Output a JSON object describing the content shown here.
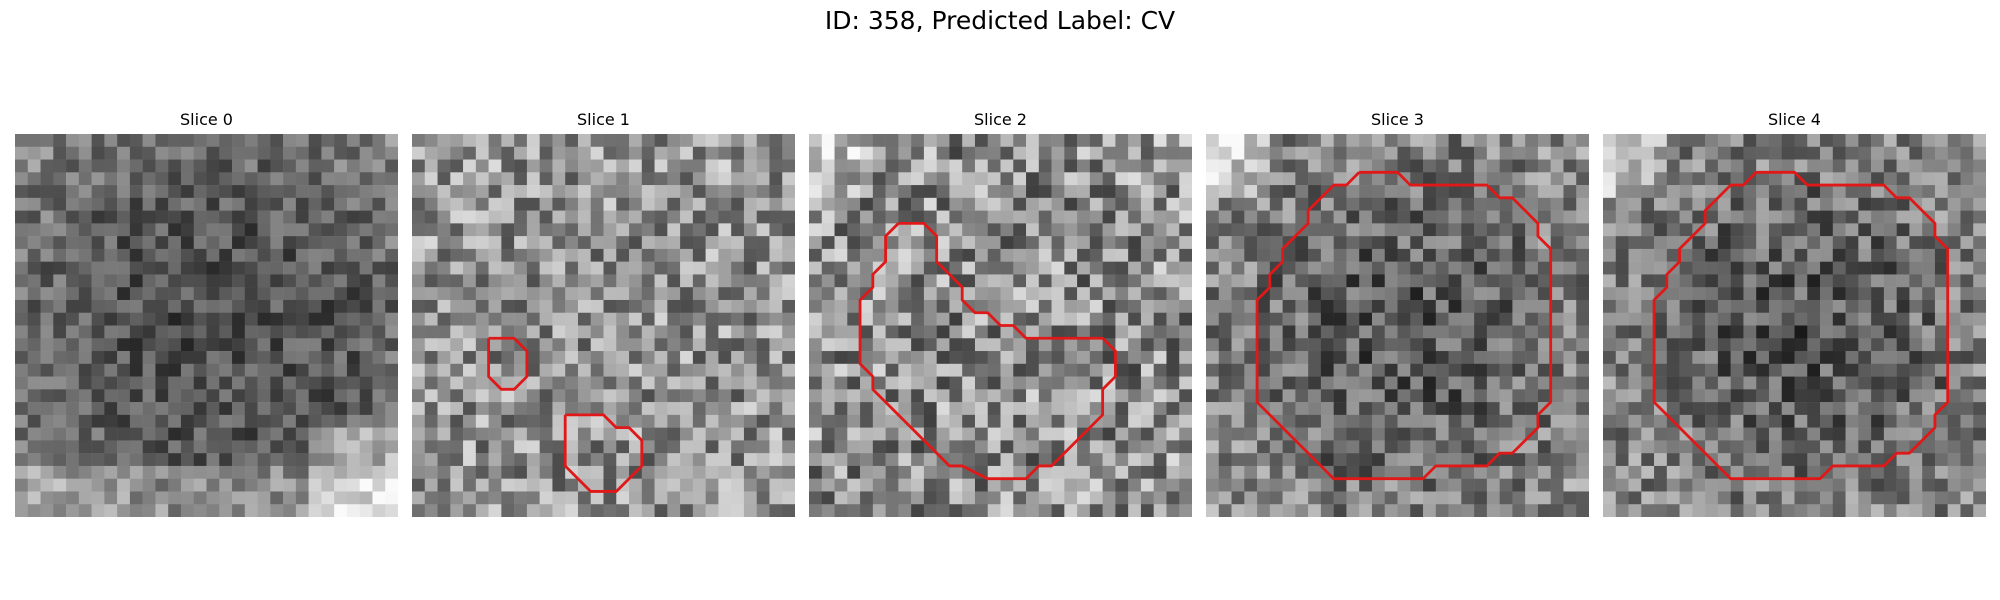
{
  "figure": {
    "title": "ID: 358, Predicted Label: CV"
  },
  "slices": [
    {
      "title": "Slice 0",
      "contours": []
    },
    {
      "title": "Slice 1",
      "contours": [
        [
          [
            6,
            16
          ],
          [
            8,
            16
          ],
          [
            9,
            17
          ],
          [
            9,
            19
          ],
          [
            8,
            20
          ],
          [
            7,
            20
          ],
          [
            6,
            19
          ],
          [
            6,
            18
          ],
          [
            6,
            16
          ]
        ],
        [
          [
            12,
            22
          ],
          [
            15,
            22
          ],
          [
            16,
            23
          ],
          [
            17,
            23
          ],
          [
            18,
            24
          ],
          [
            18,
            26
          ],
          [
            17,
            27
          ],
          [
            16,
            28
          ],
          [
            14,
            28
          ],
          [
            13,
            27
          ],
          [
            12,
            26
          ],
          [
            12,
            22
          ]
        ]
      ]
    },
    {
      "title": "Slice 2",
      "contours": [
        [
          [
            7,
            7
          ],
          [
            9,
            7
          ],
          [
            10,
            8
          ],
          [
            10,
            10
          ],
          [
            11,
            11
          ],
          [
            12,
            12
          ],
          [
            12,
            13
          ],
          [
            13,
            14
          ],
          [
            14,
            14
          ],
          [
            15,
            15
          ],
          [
            16,
            15
          ],
          [
            17,
            16
          ],
          [
            23,
            16
          ],
          [
            24,
            17
          ],
          [
            24,
            19
          ],
          [
            23,
            20
          ],
          [
            23,
            22
          ],
          [
            22,
            23
          ],
          [
            21,
            24
          ],
          [
            20,
            25
          ],
          [
            19,
            26
          ],
          [
            18,
            26
          ],
          [
            17,
            27
          ],
          [
            14,
            27
          ],
          [
            12,
            26
          ],
          [
            11,
            26
          ],
          [
            10,
            25
          ],
          [
            9,
            24
          ],
          [
            8,
            23
          ],
          [
            7,
            22
          ],
          [
            6,
            21
          ],
          [
            5,
            20
          ],
          [
            5,
            19
          ],
          [
            4,
            18
          ],
          [
            4,
            13
          ],
          [
            5,
            12
          ],
          [
            5,
            11
          ],
          [
            6,
            10
          ],
          [
            6,
            8
          ],
          [
            7,
            7
          ]
        ]
      ]
    },
    {
      "title": "Slice 3",
      "contours": [
        [
          [
            12,
            3
          ],
          [
            15,
            3
          ],
          [
            16,
            4
          ],
          [
            22,
            4
          ],
          [
            23,
            5
          ],
          [
            24,
            5
          ],
          [
            25,
            6
          ],
          [
            26,
            7
          ],
          [
            26,
            8
          ],
          [
            27,
            9
          ],
          [
            27,
            21
          ],
          [
            26,
            22
          ],
          [
            26,
            23
          ],
          [
            25,
            24
          ],
          [
            24,
            25
          ],
          [
            23,
            25
          ],
          [
            22,
            26
          ],
          [
            18,
            26
          ],
          [
            17,
            27
          ],
          [
            10,
            27
          ],
          [
            9,
            26
          ],
          [
            8,
            25
          ],
          [
            7,
            24
          ],
          [
            6,
            23
          ],
          [
            5,
            22
          ],
          [
            4,
            21
          ],
          [
            4,
            13
          ],
          [
            5,
            12
          ],
          [
            5,
            11
          ],
          [
            6,
            10
          ],
          [
            6,
            9
          ],
          [
            7,
            8
          ],
          [
            8,
            7
          ],
          [
            8,
            6
          ],
          [
            9,
            5
          ],
          [
            10,
            4
          ],
          [
            11,
            4
          ],
          [
            12,
            3
          ]
        ]
      ]
    },
    {
      "title": "Slice 4",
      "contours": [
        [
          [
            12,
            3
          ],
          [
            15,
            3
          ],
          [
            16,
            4
          ],
          [
            22,
            4
          ],
          [
            23,
            5
          ],
          [
            24,
            5
          ],
          [
            25,
            6
          ],
          [
            26,
            7
          ],
          [
            26,
            8
          ],
          [
            27,
            9
          ],
          [
            27,
            21
          ],
          [
            26,
            22
          ],
          [
            26,
            23
          ],
          [
            25,
            24
          ],
          [
            24,
            25
          ],
          [
            23,
            25
          ],
          [
            22,
            26
          ],
          [
            18,
            26
          ],
          [
            17,
            27
          ],
          [
            10,
            27
          ],
          [
            9,
            26
          ],
          [
            8,
            25
          ],
          [
            7,
            24
          ],
          [
            6,
            23
          ],
          [
            5,
            22
          ],
          [
            4,
            21
          ],
          [
            4,
            13
          ],
          [
            5,
            12
          ],
          [
            5,
            11
          ],
          [
            6,
            10
          ],
          [
            6,
            9
          ],
          [
            7,
            8
          ],
          [
            8,
            7
          ],
          [
            8,
            6
          ],
          [
            9,
            5
          ],
          [
            10,
            4
          ],
          [
            11,
            4
          ],
          [
            12,
            3
          ]
        ]
      ]
    }
  ],
  "style": {
    "contour_color": "#e01818"
  }
}
